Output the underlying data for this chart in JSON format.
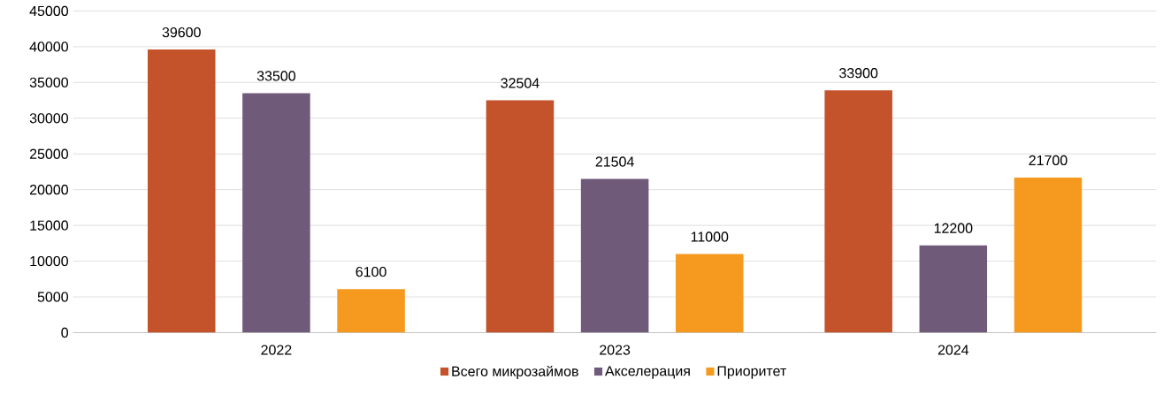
{
  "chart_data": {
    "type": "bar",
    "categories": [
      "2022",
      "2023",
      "2024"
    ],
    "series": [
      {
        "name": "Всего микрозаймов",
        "color": "#c4522a",
        "values": [
          39600,
          32504,
          33900
        ]
      },
      {
        "name": "Акселерация",
        "color": "#6f5a7a",
        "values": [
          33500,
          21504,
          12200
        ]
      },
      {
        "name": "Приоритет",
        "color": "#f59a1e",
        "values": [
          6100,
          11000,
          21700
        ]
      }
    ],
    "ylim": [
      0,
      45000
    ],
    "yticks": [
      0,
      5000,
      10000,
      15000,
      20000,
      25000,
      30000,
      35000,
      40000,
      45000
    ],
    "grid": "y",
    "legend": "bottom",
    "data_labels": true
  }
}
